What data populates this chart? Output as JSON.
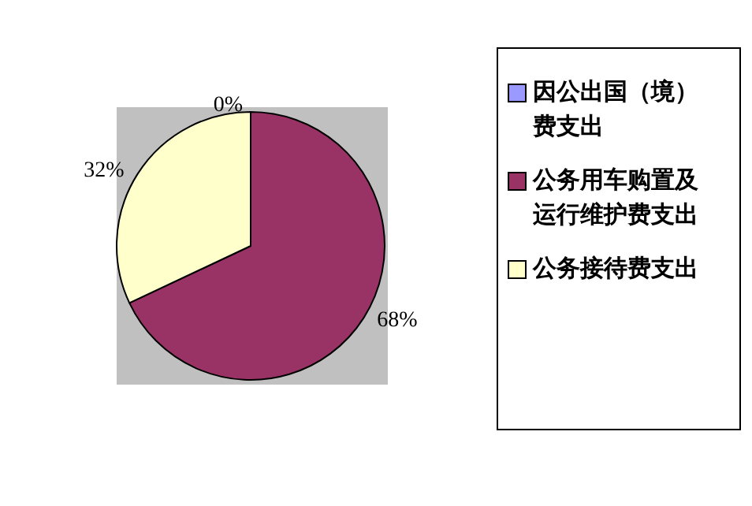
{
  "chart_data": {
    "type": "pie",
    "categories": [
      "因公出国（境）费支出",
      "公务用车购置及运行维护费支出",
      "公务接待费支出"
    ],
    "values": [
      0,
      68,
      32
    ],
    "value_labels": [
      "0%",
      "68%",
      "32%"
    ],
    "colors": [
      "#9999ff",
      "#993366",
      "#ffffcc"
    ],
    "legend": "right"
  }
}
